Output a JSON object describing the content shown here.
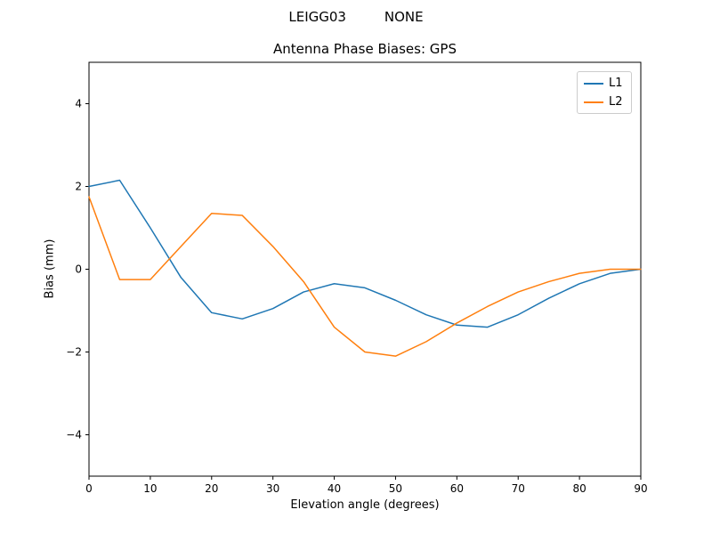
{
  "chart_data": {
    "type": "line",
    "suptitle": "LEIGG03         NONE",
    "title": "Antenna Phase Biases: GPS",
    "xlabel": "Elevation angle (degrees)",
    "ylabel": "Bias (mm)",
    "xlim": [
      0,
      90
    ],
    "ylim": [
      -5,
      5
    ],
    "xticks": [
      0,
      10,
      20,
      30,
      40,
      50,
      60,
      70,
      80,
      90
    ],
    "yticks": [
      -4,
      -2,
      0,
      2,
      4
    ],
    "grid": false,
    "x": [
      0,
      5,
      10,
      15,
      20,
      25,
      30,
      35,
      40,
      45,
      50,
      55,
      60,
      65,
      70,
      75,
      80,
      85,
      90
    ],
    "series": [
      {
        "name": "L1",
        "color": "#1f77b4",
        "values": [
          2.0,
          2.15,
          1.0,
          -0.2,
          -1.05,
          -1.2,
          -0.95,
          -0.55,
          -0.35,
          -0.45,
          -0.75,
          -1.1,
          -1.35,
          -1.4,
          -1.1,
          -0.7,
          -0.35,
          -0.1,
          0.0
        ]
      },
      {
        "name": "L2",
        "color": "#ff7f0e",
        "values": [
          1.75,
          -0.25,
          -0.25,
          0.55,
          1.35,
          1.3,
          0.55,
          -0.3,
          -1.4,
          -2.0,
          -2.1,
          -1.75,
          -1.3,
          -0.9,
          -0.55,
          -0.3,
          -0.1,
          0.0,
          0.0
        ]
      }
    ],
    "legend": {
      "position": "upper right",
      "items": [
        "L1",
        "L2"
      ]
    }
  }
}
